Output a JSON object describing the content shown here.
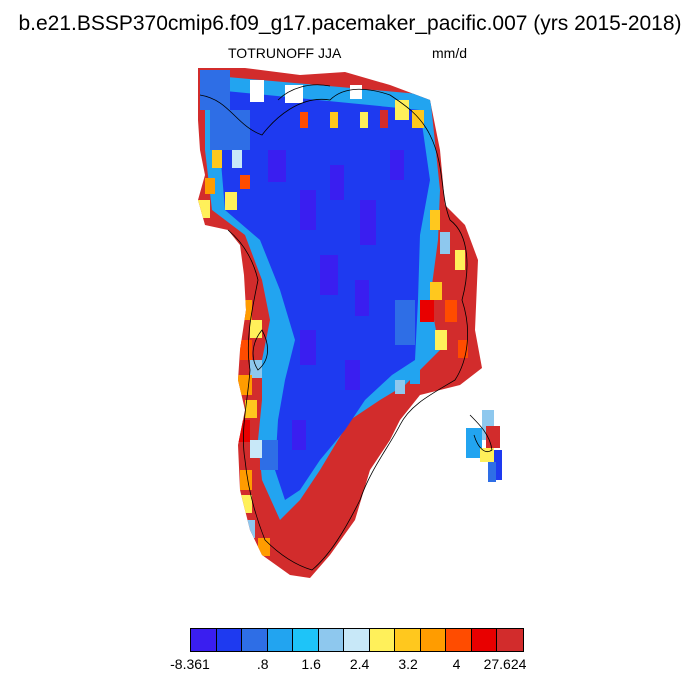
{
  "title": "b.e21.BSSP370cmip6.f09_g17.pacemaker_pacific.007 (yrs 2015-2018)",
  "variable": "TOTRUNOFF JJA",
  "units": "mm/d",
  "colorbar": {
    "colors": [
      "#3a1ef0",
      "#1e3af0",
      "#2e6ee6",
      "#22a4f0",
      "#1ec4f8",
      "#8ec8ee",
      "#c8e8f8",
      "#fff05a",
      "#ffc81e",
      "#ff9c00",
      "#ff4c00",
      "#e80000",
      "#d22c2c"
    ],
    "labels": [
      "-8.361",
      ".8",
      "1.6",
      "2.4",
      "3.2",
      "4",
      "27.624"
    ]
  }
}
